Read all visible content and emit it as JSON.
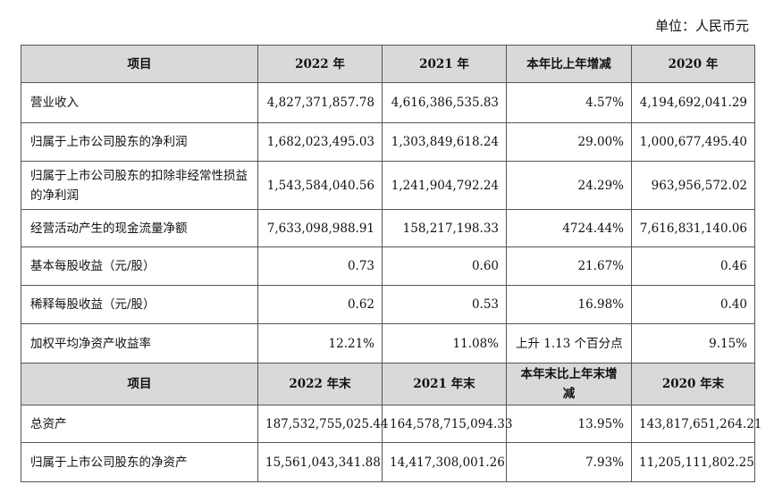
{
  "unit": "单位：人民币元",
  "header1": [
    "项目",
    "2022 年",
    "2021 年",
    "本年比上年增减",
    "2020 年"
  ],
  "rows1": [
    {
      "label": "营业收入",
      "v2022": "4,827,371,857.78",
      "v2021": "4,616,386,535.83",
      "change": "4.57%",
      "v2020": "4,194,692,041.29"
    },
    {
      "label": "归属于上市公司股东的净利润",
      "v2022": "1,682,023,495.03",
      "v2021": "1,303,849,618.24",
      "change": "29.00%",
      "v2020": "1,000,677,495.40"
    },
    {
      "label": "归属于上市公司股东的扣除非经常性损益的净利润",
      "v2022": "1,543,584,040.56",
      "v2021": "1,241,904,792.24",
      "change": "24.29%",
      "v2020": "963,956,572.02"
    },
    {
      "label": "经营活动产生的现金流量净额",
      "v2022": "7,633,098,988.91",
      "v2021": "158,217,198.33",
      "change": "4724.44%",
      "v2020": "7,616,831,140.06"
    },
    {
      "label": "基本每股收益（元/股）",
      "v2022": "0.73",
      "v2021": "0.60",
      "change": "21.67%",
      "v2020": "0.46"
    },
    {
      "label": "稀释每股收益（元/股）",
      "v2022": "0.62",
      "v2021": "0.53",
      "change": "16.98%",
      "v2020": "0.40"
    },
    {
      "label": "加权平均净资产收益率",
      "v2022": "12.21%",
      "v2021": "11.08%",
      "change": "上升 1.13 个百分点",
      "v2020": "9.15%"
    }
  ],
  "header2": [
    "项目",
    "2022 年末",
    "2021 年末",
    "本年末比上年末增减",
    "2020 年末"
  ],
  "rows2": [
    {
      "label": "总资产",
      "v2022": "187,532,755,025.44",
      "v2021": "164,578,715,094.33",
      "change": "13.95%",
      "v2020": "143,817,651,264.21"
    },
    {
      "label": "归属于上市公司股东的净资产",
      "v2022": "15,561,043,341.88",
      "v2021": "14,417,308,001.26",
      "change": "7.93%",
      "v2020": "11,205,111,802.25"
    }
  ]
}
